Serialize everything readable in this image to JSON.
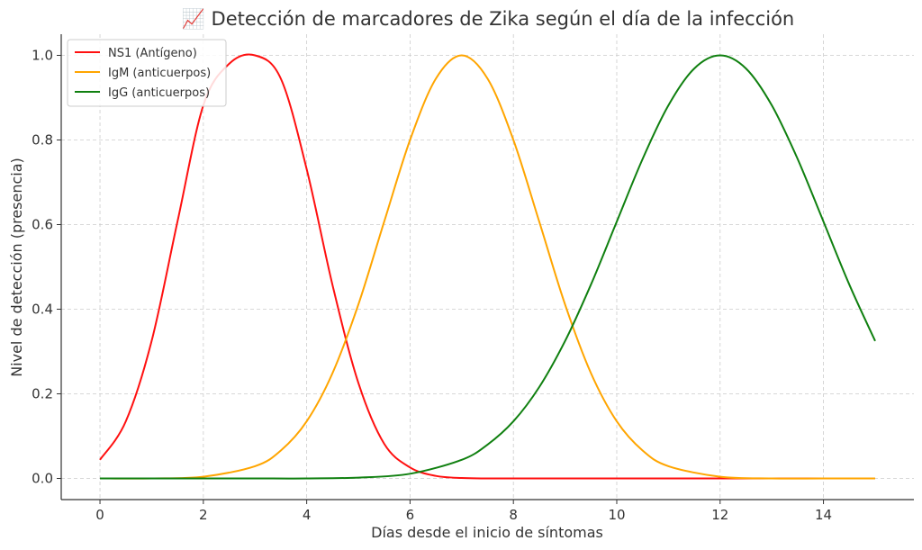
{
  "chart_data": {
    "type": "line",
    "title": "📈 Detección de marcadores de Zika según el día de la infección",
    "xlabel": "Días desde el inicio de síntomas",
    "ylabel": "Nivel de detección (presencia)",
    "xlim": [
      -0.75,
      15.75
    ],
    "ylim": [
      -0.05,
      1.05
    ],
    "xticks": [
      0,
      2,
      4,
      6,
      8,
      10,
      12,
      14
    ],
    "xtick_labels": [
      "0",
      "2",
      "4",
      "6",
      "8",
      "10",
      "12",
      "14"
    ],
    "yticks": [
      0.0,
      0.2,
      0.4,
      0.6,
      0.8,
      1.0
    ],
    "ytick_labels": [
      "0.0",
      "0.2",
      "0.4",
      "0.6",
      "0.8",
      "1.0"
    ],
    "grid": true,
    "legend_position": "top-left",
    "series": [
      {
        "name": "NS1 (Antígeno)",
        "color": "#ff1010",
        "x": [
          0,
          0.5,
          1,
          1.5,
          2,
          2.5,
          3,
          3.5,
          4,
          4.5,
          5,
          5.5,
          6,
          6.5,
          7,
          7.5,
          8,
          9,
          10,
          11,
          12,
          13,
          14,
          15
        ],
        "y": [
          0.044,
          0.135,
          0.325,
          0.607,
          0.882,
          0.98,
          1.0,
          0.945,
          0.731,
          0.457,
          0.226,
          0.082,
          0.026,
          0.006,
          0.001,
          0.0,
          0.0,
          0.0,
          0.0,
          0.0,
          0.0,
          0.0,
          0.0,
          0.0
        ]
      },
      {
        "name": "IgM (anticuerpos)",
        "color": "#ffa500",
        "x": [
          0,
          1,
          2,
          3,
          3.5,
          4,
          4.5,
          5,
          5.5,
          6,
          6.5,
          7,
          7.5,
          8,
          8.5,
          9,
          9.5,
          10,
          10.5,
          11,
          12,
          13,
          14,
          15
        ],
        "y": [
          0.0,
          0.0,
          0.004,
          0.029,
          0.066,
          0.135,
          0.249,
          0.411,
          0.607,
          0.8,
          0.945,
          1.0,
          0.945,
          0.8,
          0.607,
          0.411,
          0.249,
          0.135,
          0.066,
          0.029,
          0.004,
          0.0,
          0.0,
          0.0
        ]
      },
      {
        "name": "IgG (anticuerpos)",
        "color": "#108010",
        "x": [
          0,
          2,
          3,
          4,
          5,
          6,
          7,
          7.5,
          8,
          8.5,
          9,
          9.5,
          10,
          10.5,
          11,
          11.5,
          12,
          12.5,
          13,
          13.5,
          14,
          14.5,
          15
        ],
        "y": [
          0.0,
          0.0,
          0.0,
          0.0,
          0.002,
          0.011,
          0.044,
          0.08,
          0.135,
          0.216,
          0.325,
          0.458,
          0.607,
          0.755,
          0.882,
          0.969,
          1.0,
          0.969,
          0.882,
          0.755,
          0.607,
          0.458,
          0.325
        ]
      }
    ]
  }
}
